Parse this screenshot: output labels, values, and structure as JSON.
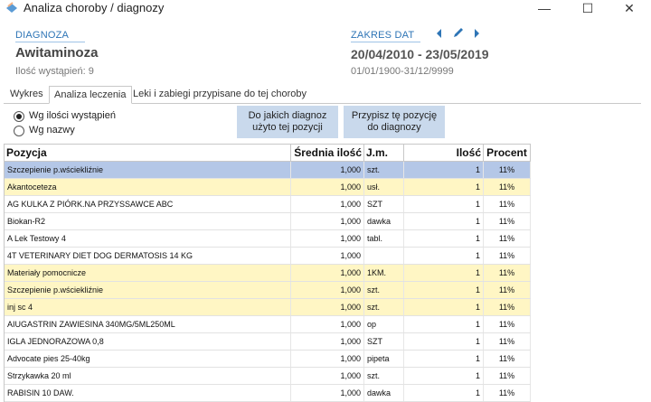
{
  "window": {
    "title": "Analiza choroby / diagnozy",
    "min": "—",
    "max": "☐",
    "close": "✕"
  },
  "diagnosis": {
    "label": "DIAGNOZA",
    "name": "Awitaminoza",
    "count_text": "Ilość wystąpień: 9"
  },
  "date_range": {
    "label": "ZAKRES DAT",
    "main": "20/04/2010 - 23/05/2019",
    "sub": "01/01/1900-31/12/9999"
  },
  "tabs": [
    {
      "label": "Wykres",
      "active": false
    },
    {
      "label": "Analiza leczenia",
      "active": true
    },
    {
      "label": "Leki i zabiegi przypisane do tej choroby",
      "active": false
    }
  ],
  "radios": [
    {
      "label": "Wg ilości wystąpień",
      "checked": true
    },
    {
      "label": "Wg nazwy",
      "checked": false
    }
  ],
  "buttons": {
    "which_diag": "Do jakich diagnoz użyto tej pozycji",
    "assign": "Przypisz tę pozycję do diagnozy"
  },
  "table": {
    "headers": [
      "Pozycja",
      "Średnia ilość",
      "J.m.",
      "Ilość",
      "Procent"
    ],
    "rows": [
      {
        "pozycja": "Szczepienie p.wściekliźnie",
        "srednia": "1,000",
        "jm": "szt.",
        "ilosc": "1",
        "procent": "11%",
        "style": "sel"
      },
      {
        "pozycja": "Akantoceteza",
        "srednia": "1,000",
        "jm": "usł.",
        "ilosc": "1",
        "procent": "11%",
        "style": "hl"
      },
      {
        "pozycja": "AG KULKA Z PIÓRK.NA PRZYSSAWCE ABC",
        "srednia": "1,000",
        "jm": "SZT",
        "ilosc": "1",
        "procent": "11%",
        "style": ""
      },
      {
        "pozycja": "Biokan-R2",
        "srednia": "1,000",
        "jm": "dawka",
        "ilosc": "1",
        "procent": "11%",
        "style": ""
      },
      {
        "pozycja": "A Lek Testowy 4",
        "srednia": "1,000",
        "jm": "tabl.",
        "ilosc": "1",
        "procent": "11%",
        "style": ""
      },
      {
        "pozycja": "4T VETERINARY DIET DOG DERMATOSIS 14 KG",
        "srednia": "1,000",
        "jm": "",
        "ilosc": "1",
        "procent": "11%",
        "style": ""
      },
      {
        "pozycja": "Materiały pomocnicze",
        "srednia": "1,000",
        "jm": "1KM.",
        "ilosc": "1",
        "procent": "11%",
        "style": "hl"
      },
      {
        "pozycja": "Szczepienie p.wściekliźnie",
        "srednia": "1,000",
        "jm": "szt.",
        "ilosc": "1",
        "procent": "11%",
        "style": "hl"
      },
      {
        "pozycja": "inj sc 4",
        "srednia": "1,000",
        "jm": "szt.",
        "ilosc": "1",
        "procent": "11%",
        "style": "hl"
      },
      {
        "pozycja": "AIUGASTRIN ZAWIESINA 340MG/5ML250ML",
        "srednia": "1,000",
        "jm": "op",
        "ilosc": "1",
        "procent": "11%",
        "style": ""
      },
      {
        "pozycja": "IGLA  JEDNORAZOWA 0,8",
        "srednia": "1,000",
        "jm": "SZT",
        "ilosc": "1",
        "procent": "11%",
        "style": ""
      },
      {
        "pozycja": "Advocate pies 25-40kg",
        "srednia": "1,000",
        "jm": "pipeta",
        "ilosc": "1",
        "procent": "11%",
        "style": ""
      },
      {
        "pozycja": "Strzykawka 20 ml",
        "srednia": "1,000",
        "jm": "szt.",
        "ilosc": "1",
        "procent": "11%",
        "style": ""
      },
      {
        "pozycja": "RABISIN 10 DAW.",
        "srednia": "1,000",
        "jm": "dawka",
        "ilosc": "1",
        "procent": "11%",
        "style": ""
      }
    ]
  }
}
